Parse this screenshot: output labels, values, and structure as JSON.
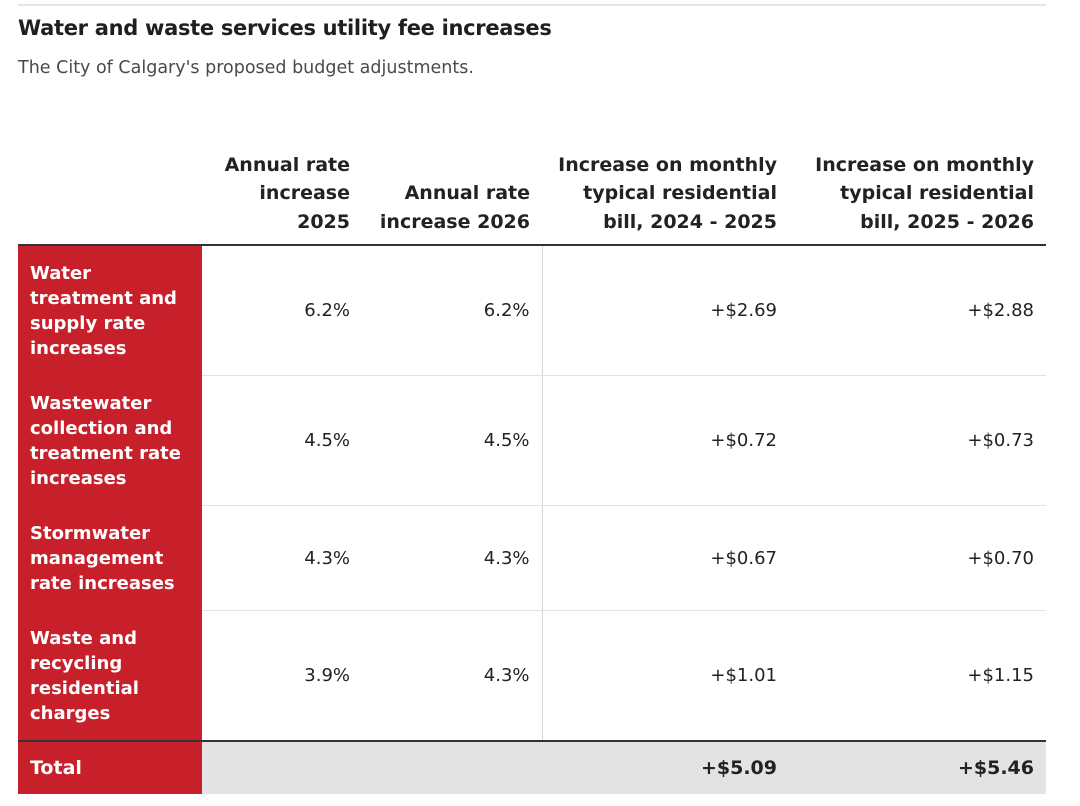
{
  "title": "Water and waste services utility fee increases",
  "subtitle": "The City of Calgary's proposed budget adjustments.",
  "chart_data": {
    "type": "table",
    "columns": [
      "",
      "Annual rate increase 2025",
      "Annual rate increase 2026",
      "Increase on monthly typical residential bill, 2024 - 2025",
      "Increase on monthly typical residential bill, 2025 - 2026"
    ],
    "rows": [
      {
        "label": "Water treatment and supply rate increases",
        "rate_2025": "6.2%",
        "rate_2026": "6.2%",
        "bill_2024_2025": "+$2.69",
        "bill_2025_2026": "+$2.88"
      },
      {
        "label": "Wastewater collection and treatment rate increases",
        "rate_2025": "4.5%",
        "rate_2026": "4.5%",
        "bill_2024_2025": "+$0.72",
        "bill_2025_2026": "+$0.73"
      },
      {
        "label": "Stormwater management rate increases",
        "rate_2025": "4.3%",
        "rate_2026": "4.3%",
        "bill_2024_2025": "+$0.67",
        "bill_2025_2026": "+$0.70"
      },
      {
        "label": "Waste and recycling residential charges",
        "rate_2025": "3.9%",
        "rate_2026": "4.3%",
        "bill_2024_2025": "+$1.01",
        "bill_2025_2026": "+$1.15"
      }
    ],
    "total": {
      "label": "Total",
      "rate_2025": "",
      "rate_2026": "",
      "bill_2024_2025": "+$5.09",
      "bill_2025_2026": "+$5.46"
    }
  },
  "colors": {
    "row_header": "#c8202a",
    "total_bg": "#e3e3e3",
    "rule": "#333333"
  }
}
